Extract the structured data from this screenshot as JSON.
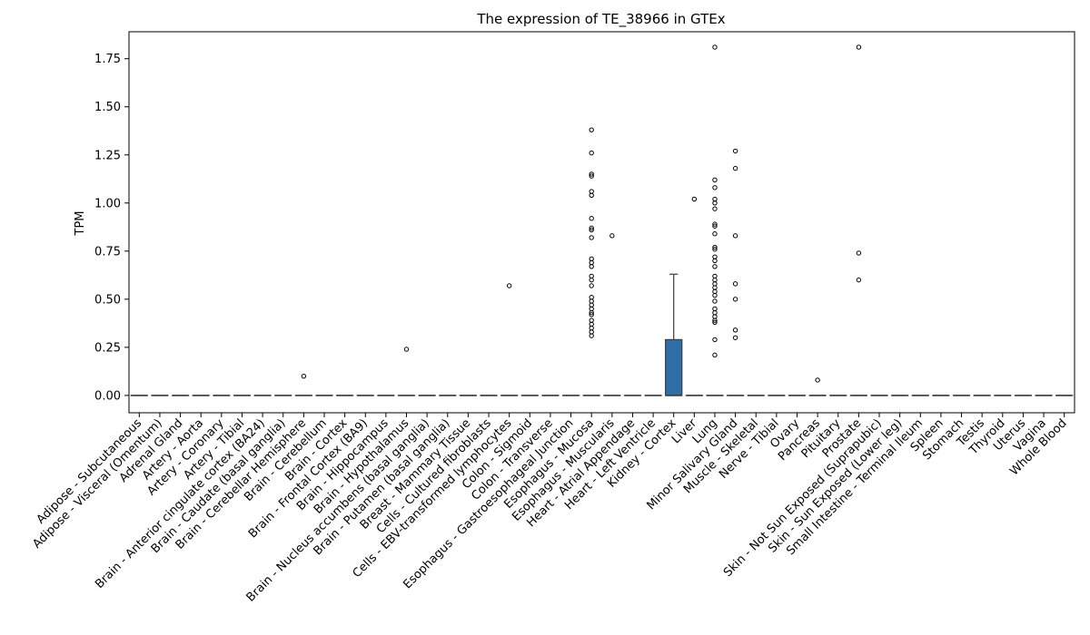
{
  "chart_data": {
    "type": "box",
    "title": "The expression of TE_38966 in GTEx",
    "xlabel": "",
    "ylabel": "TPM",
    "ylim": [
      -0.09,
      1.89
    ],
    "yticks": [
      "0.00",
      "0.25",
      "0.50",
      "0.75",
      "1.00",
      "1.25",
      "1.50",
      "1.75"
    ],
    "box_color": "#2f6fa8",
    "categories": [
      {
        "name": "Adipose - Subcutaneous",
        "q1": 0,
        "median": 0,
        "q3": 0,
        "whisker_low": 0,
        "whisker_high": 0,
        "outliers": []
      },
      {
        "name": "Adipose - Visceral (Omentum)",
        "q1": 0,
        "median": 0,
        "q3": 0,
        "whisker_low": 0,
        "whisker_high": 0,
        "outliers": []
      },
      {
        "name": "Adrenal Gland",
        "q1": 0,
        "median": 0,
        "q3": 0,
        "whisker_low": 0,
        "whisker_high": 0,
        "outliers": []
      },
      {
        "name": "Artery - Aorta",
        "q1": 0,
        "median": 0,
        "q3": 0,
        "whisker_low": 0,
        "whisker_high": 0,
        "outliers": []
      },
      {
        "name": "Artery - Coronary",
        "q1": 0,
        "median": 0,
        "q3": 0,
        "whisker_low": 0,
        "whisker_high": 0,
        "outliers": []
      },
      {
        "name": "Artery - Tibial",
        "q1": 0,
        "median": 0,
        "q3": 0,
        "whisker_low": 0,
        "whisker_high": 0,
        "outliers": []
      },
      {
        "name": "Brain - Anterior cingulate cortex (BA24)",
        "q1": 0,
        "median": 0,
        "q3": 0,
        "whisker_low": 0,
        "whisker_high": 0,
        "outliers": []
      },
      {
        "name": "Brain - Caudate (basal ganglia)",
        "q1": 0,
        "median": 0,
        "q3": 0,
        "whisker_low": 0,
        "whisker_high": 0,
        "outliers": []
      },
      {
        "name": "Brain - Cerebellar Hemisphere",
        "q1": 0,
        "median": 0,
        "q3": 0,
        "whisker_low": 0,
        "whisker_high": 0,
        "outliers": [
          0.1
        ]
      },
      {
        "name": "Brain - Cerebellum",
        "q1": 0,
        "median": 0,
        "q3": 0,
        "whisker_low": 0,
        "whisker_high": 0,
        "outliers": []
      },
      {
        "name": "Brain - Cortex",
        "q1": 0,
        "median": 0,
        "q3": 0,
        "whisker_low": 0,
        "whisker_high": 0,
        "outliers": []
      },
      {
        "name": "Brain - Frontal Cortex (BA9)",
        "q1": 0,
        "median": 0,
        "q3": 0,
        "whisker_low": 0,
        "whisker_high": 0,
        "outliers": []
      },
      {
        "name": "Brain - Hippocampus",
        "q1": 0,
        "median": 0,
        "q3": 0,
        "whisker_low": 0,
        "whisker_high": 0,
        "outliers": []
      },
      {
        "name": "Brain - Hypothalamus",
        "q1": 0,
        "median": 0,
        "q3": 0,
        "whisker_low": 0,
        "whisker_high": 0,
        "outliers": [
          0.24
        ]
      },
      {
        "name": "Brain - Nucleus accumbens (basal ganglia)",
        "q1": 0,
        "median": 0,
        "q3": 0,
        "whisker_low": 0,
        "whisker_high": 0,
        "outliers": []
      },
      {
        "name": "Brain - Putamen (basal ganglia)",
        "q1": 0,
        "median": 0,
        "q3": 0,
        "whisker_low": 0,
        "whisker_high": 0,
        "outliers": []
      },
      {
        "name": "Breast - Mammary Tissue",
        "q1": 0,
        "median": 0,
        "q3": 0,
        "whisker_low": 0,
        "whisker_high": 0,
        "outliers": []
      },
      {
        "name": "Cells - Cultured fibroblasts",
        "q1": 0,
        "median": 0,
        "q3": 0,
        "whisker_low": 0,
        "whisker_high": 0,
        "outliers": []
      },
      {
        "name": "Cells - EBV-transformed lymphocytes",
        "q1": 0,
        "median": 0,
        "q3": 0,
        "whisker_low": 0,
        "whisker_high": 0,
        "outliers": [
          0.57
        ]
      },
      {
        "name": "Colon - Sigmoid",
        "q1": 0,
        "median": 0,
        "q3": 0,
        "whisker_low": 0,
        "whisker_high": 0,
        "outliers": []
      },
      {
        "name": "Colon - Transverse",
        "q1": 0,
        "median": 0,
        "q3": 0,
        "whisker_low": 0,
        "whisker_high": 0,
        "outliers": []
      },
      {
        "name": "Esophagus - Gastroesophageal Junction",
        "q1": 0,
        "median": 0,
        "q3": 0,
        "whisker_low": 0,
        "whisker_high": 0,
        "outliers": []
      },
      {
        "name": "Esophagus - Mucosa",
        "q1": 0,
        "median": 0,
        "q3": 0,
        "whisker_low": 0,
        "whisker_high": 0,
        "outliers": [
          1.38,
          1.26,
          1.15,
          1.14,
          1.06,
          1.04,
          0.92,
          0.87,
          0.86,
          0.82,
          0.71,
          0.69,
          0.67,
          0.62,
          0.6,
          0.57,
          0.51,
          0.49,
          0.47,
          0.45,
          0.43,
          0.42,
          0.39,
          0.37,
          0.35,
          0.33,
          0.31
        ]
      },
      {
        "name": "Esophagus - Muscularis",
        "q1": 0,
        "median": 0,
        "q3": 0,
        "whisker_low": 0,
        "whisker_high": 0,
        "outliers": [
          0.83
        ]
      },
      {
        "name": "Heart - Atrial Appendage",
        "q1": 0,
        "median": 0,
        "q3": 0,
        "whisker_low": 0,
        "whisker_high": 0,
        "outliers": []
      },
      {
        "name": "Heart - Left Ventricle",
        "q1": 0,
        "median": 0,
        "q3": 0,
        "whisker_low": 0,
        "whisker_high": 0,
        "outliers": []
      },
      {
        "name": "Kidney - Cortex",
        "q1": 0,
        "median": 0,
        "q3": 0.29,
        "whisker_low": 0,
        "whisker_high": 0.63,
        "outliers": []
      },
      {
        "name": "Liver",
        "q1": 0,
        "median": 0,
        "q3": 0,
        "whisker_low": 0,
        "whisker_high": 0,
        "outliers": [
          1.02
        ]
      },
      {
        "name": "Lung",
        "q1": 0,
        "median": 0,
        "q3": 0,
        "whisker_low": 0,
        "whisker_high": 0,
        "outliers": [
          1.81,
          1.12,
          1.08,
          1.02,
          1.0,
          0.97,
          0.89,
          0.88,
          0.84,
          0.77,
          0.76,
          0.72,
          0.7,
          0.67,
          0.62,
          0.6,
          0.58,
          0.56,
          0.54,
          0.52,
          0.49,
          0.45,
          0.43,
          0.41,
          0.39,
          0.38,
          0.29,
          0.21
        ]
      },
      {
        "name": "Minor Salivary Gland",
        "q1": 0,
        "median": 0,
        "q3": 0,
        "whisker_low": 0,
        "whisker_high": 0,
        "outliers": [
          1.27,
          1.18,
          0.83,
          0.58,
          0.5,
          0.34,
          0.3
        ]
      },
      {
        "name": "Muscle - Skeletal",
        "q1": 0,
        "median": 0,
        "q3": 0,
        "whisker_low": 0,
        "whisker_high": 0,
        "outliers": []
      },
      {
        "name": "Nerve - Tibial",
        "q1": 0,
        "median": 0,
        "q3": 0,
        "whisker_low": 0,
        "whisker_high": 0,
        "outliers": []
      },
      {
        "name": "Ovary",
        "q1": 0,
        "median": 0,
        "q3": 0,
        "whisker_low": 0,
        "whisker_high": 0,
        "outliers": []
      },
      {
        "name": "Pancreas",
        "q1": 0,
        "median": 0,
        "q3": 0,
        "whisker_low": 0,
        "whisker_high": 0,
        "outliers": [
          0.08
        ]
      },
      {
        "name": "Pituitary",
        "q1": 0,
        "median": 0,
        "q3": 0,
        "whisker_low": 0,
        "whisker_high": 0,
        "outliers": []
      },
      {
        "name": "Prostate",
        "q1": 0,
        "median": 0,
        "q3": 0,
        "whisker_low": 0,
        "whisker_high": 0,
        "outliers": [
          1.81,
          0.74,
          0.6
        ]
      },
      {
        "name": "Skin - Not Sun Exposed (Suprapubic)",
        "q1": 0,
        "median": 0,
        "q3": 0,
        "whisker_low": 0,
        "whisker_high": 0,
        "outliers": []
      },
      {
        "name": "Skin - Sun Exposed (Lower leg)",
        "q1": 0,
        "median": 0,
        "q3": 0,
        "whisker_low": 0,
        "whisker_high": 0,
        "outliers": []
      },
      {
        "name": "Small Intestine - Terminal Ileum",
        "q1": 0,
        "median": 0,
        "q3": 0,
        "whisker_low": 0,
        "whisker_high": 0,
        "outliers": []
      },
      {
        "name": "Spleen",
        "q1": 0,
        "median": 0,
        "q3": 0,
        "whisker_low": 0,
        "whisker_high": 0,
        "outliers": []
      },
      {
        "name": "Stomach",
        "q1": 0,
        "median": 0,
        "q3": 0,
        "whisker_low": 0,
        "whisker_high": 0,
        "outliers": []
      },
      {
        "name": "Testis",
        "q1": 0,
        "median": 0,
        "q3": 0,
        "whisker_low": 0,
        "whisker_high": 0,
        "outliers": []
      },
      {
        "name": "Thyroid",
        "q1": 0,
        "median": 0,
        "q3": 0,
        "whisker_low": 0,
        "whisker_high": 0,
        "outliers": []
      },
      {
        "name": "Uterus",
        "q1": 0,
        "median": 0,
        "q3": 0,
        "whisker_low": 0,
        "whisker_high": 0,
        "outliers": []
      },
      {
        "name": "Vagina",
        "q1": 0,
        "median": 0,
        "q3": 0,
        "whisker_low": 0,
        "whisker_high": 0,
        "outliers": []
      },
      {
        "name": "Whole Blood",
        "q1": 0,
        "median": 0,
        "q3": 0,
        "whisker_low": 0,
        "whisker_high": 0,
        "outliers": []
      }
    ]
  }
}
